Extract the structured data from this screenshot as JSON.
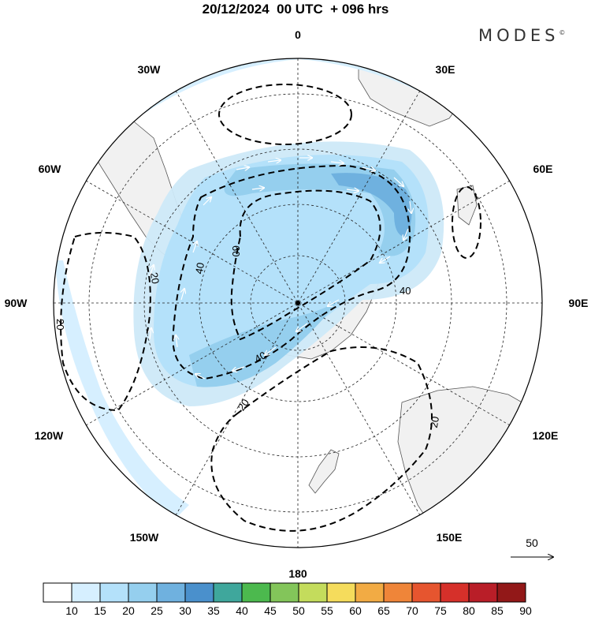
{
  "title": "20/12/2024  00 UTC  + 096 hrs",
  "brand": "MODES",
  "brand_mark": "©",
  "map": {
    "projection": "south polar stereographic",
    "longitude_labels": [
      "0",
      "30E",
      "60E",
      "90E",
      "120E",
      "150E",
      "180",
      "150W",
      "120W",
      "90W",
      "60W",
      "30W"
    ],
    "contour_labels": [
      "60",
      "40",
      "40",
      "40",
      "20",
      "20",
      "20",
      "20",
      "20"
    ],
    "reference_vector": "50"
  },
  "colorbar": {
    "labels": [
      "10",
      "15",
      "20",
      "25",
      "30",
      "35",
      "40",
      "45",
      "50",
      "55",
      "60",
      "65",
      "70",
      "75",
      "80",
      "85",
      "90"
    ],
    "colors": [
      "#ffffff",
      "#d6efff",
      "#b4e1fa",
      "#95cfee",
      "#6fb1df",
      "#4a90cc",
      "#3fa79c",
      "#4cb94e",
      "#83c55a",
      "#c4dc5c",
      "#f5dc5c",
      "#f2ab44",
      "#ef8539",
      "#e6552f",
      "#d6302a",
      "#b91e28",
      "#921818"
    ]
  }
}
